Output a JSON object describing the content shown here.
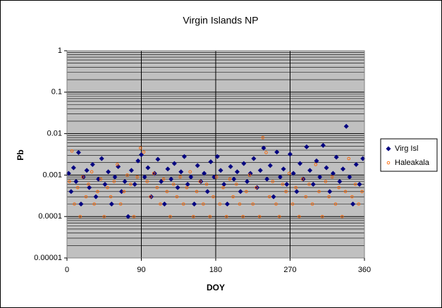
{
  "chart_data": {
    "type": "scatter",
    "title": "Virgin Islands NP",
    "x_label": "DOY",
    "y_label": "Pb",
    "xlim": [
      0,
      360
    ],
    "xticks": [
      0,
      90,
      180,
      270,
      360
    ],
    "ylim": [
      1e-05,
      1
    ],
    "yticks": [
      1,
      0.1,
      0.01,
      0.001,
      0.0001,
      {
        "value": 1e-05,
        "label": "0.00001"
      }
    ],
    "log_y": true,
    "grid": true,
    "minor_grid": true,
    "legend": "right",
    "series": [
      {
        "name": "Virg Isl",
        "color": "#000080",
        "marker": "diamond",
        "x": [
          2,
          5,
          8,
          11,
          14,
          17,
          20,
          24,
          27,
          31,
          35,
          38,
          42,
          46,
          50,
          54,
          58,
          62,
          66,
          70,
          74,
          78,
          82,
          86,
          90,
          94,
          98,
          102,
          106,
          110,
          114,
          118,
          122,
          126,
          130,
          134,
          138,
          142,
          146,
          150,
          154,
          158,
          162,
          166,
          170,
          174,
          178,
          182,
          186,
          190,
          194,
          198,
          202,
          206,
          210,
          214,
          218,
          222,
          226,
          230,
          234,
          238,
          242,
          246,
          250,
          254,
          258,
          262,
          266,
          270,
          274,
          278,
          282,
          286,
          290,
          294,
          298,
          302,
          306,
          310,
          314,
          318,
          322,
          326,
          330,
          334,
          338,
          342,
          346,
          350,
          354,
          358
        ],
        "values": [
          0.0011,
          0.0004,
          0.0015,
          0.0007,
          0.0035,
          0.0002,
          0.0009,
          0.0013,
          0.0005,
          0.0018,
          0.0003,
          0.0008,
          0.0025,
          0.0006,
          0.0012,
          0.0002,
          0.0009,
          0.0016,
          0.0004,
          0.0007,
          0.0001,
          0.0013,
          0.0006,
          0.0022,
          0.0031,
          0.0009,
          0.0015,
          0.0003,
          0.0011,
          0.0024,
          0.0007,
          0.0002,
          0.0014,
          0.0008,
          0.0019,
          0.0005,
          0.0012,
          0.0028,
          0.0006,
          0.0009,
          0.0002,
          0.0017,
          0.0007,
          0.0011,
          0.0004,
          0.0021,
          0.0009,
          0.0028,
          0.0013,
          0.0006,
          0.0002,
          0.0016,
          0.0008,
          0.0012,
          0.0004,
          0.0019,
          0.0007,
          0.0011,
          0.0025,
          0.0005,
          0.0013,
          0.0045,
          0.0008,
          0.0017,
          0.0003,
          0.0036,
          0.0009,
          0.0014,
          0.0006,
          0.0032,
          0.0011,
          0.0004,
          0.0019,
          0.0008,
          0.0048,
          0.0013,
          0.0006,
          0.0022,
          0.0009,
          0.0052,
          0.0015,
          0.0004,
          0.0011,
          0.0027,
          0.0007,
          0.0014,
          0.015,
          0.0009,
          0.0002,
          0.0018,
          0.0006,
          0.0025
        ]
      },
      {
        "name": "Haleakala",
        "color": "#ff6600",
        "marker": "circle",
        "x": [
          3,
          6,
          9,
          13,
          16,
          19,
          23,
          26,
          30,
          33,
          37,
          41,
          45,
          49,
          53,
          57,
          61,
          65,
          69,
          73,
          77,
          81,
          85,
          89,
          93,
          97,
          101,
          105,
          109,
          113,
          117,
          121,
          125,
          129,
          133,
          137,
          141,
          145,
          149,
          153,
          157,
          161,
          165,
          169,
          173,
          177,
          181,
          185,
          189,
          193,
          197,
          201,
          205,
          209,
          213,
          217,
          221,
          225,
          229,
          233,
          237,
          241,
          245,
          249,
          253,
          257,
          261,
          265,
          269,
          273,
          277,
          281,
          285,
          289,
          293,
          297,
          301,
          305,
          309,
          313,
          317,
          321,
          325,
          329,
          333,
          337,
          341,
          345,
          349,
          353,
          357
        ],
        "values": [
          0.0007,
          0.0038,
          0.0002,
          0.0005,
          0.0001,
          0.0009,
          0.0003,
          0.0006,
          0.0012,
          0.0002,
          0.0004,
          0.0008,
          0.0001,
          0.0005,
          0.0003,
          0.0007,
          0.0018,
          0.0002,
          0.0004,
          0.001,
          0.0006,
          0.0001,
          0.0009,
          0.0045,
          0.0036,
          0.0007,
          0.0003,
          0.0011,
          0.0005,
          0.0002,
          0.0008,
          0.0004,
          0.0001,
          0.0006,
          0.0003,
          0.0009,
          0.0002,
          0.0005,
          0.0012,
          0.0001,
          0.0004,
          0.0007,
          0.0002,
          0.0006,
          0.0001,
          0.0003,
          0.0009,
          0.0002,
          0.0005,
          0.0001,
          0.0008,
          0.0003,
          0.0006,
          0.0002,
          0.0001,
          0.0004,
          0.001,
          0.0002,
          0.0005,
          0.0001,
          0.008,
          0.0035,
          0.0003,
          0.0007,
          0.0002,
          0.0001,
          0.0006,
          0.0004,
          0.0011,
          0.0002,
          0.0005,
          0.0001,
          0.0008,
          0.0003,
          0.0006,
          0.0002,
          0.0018,
          0.0004,
          0.0001,
          0.0007,
          0.0003,
          0.0009,
          0.0002,
          0.0005,
          0.0001,
          0.0004,
          0.0025,
          0.0003,
          0.0006,
          0.0002,
          0.0004
        ]
      }
    ]
  }
}
